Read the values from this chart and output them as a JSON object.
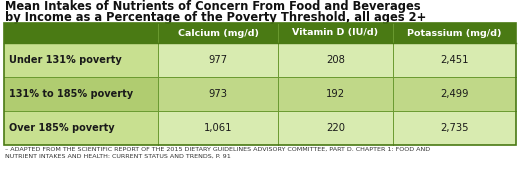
{
  "title_line1": "Mean Intakes of Nutrients of Concern From Food and Beverages",
  "title_line2": "by Income as a Percentage of the Poverty Threshold, all ages 2+",
  "col_headers": [
    "Calcium (mg/d)",
    "Vitamin D (IU/d)",
    "Potassium (mg/d)"
  ],
  "row_labels": [
    "Under 131% poverty",
    "131% to 185% poverty",
    "Over 185% poverty"
  ],
  "data": [
    [
      "977",
      "208",
      "2,451"
    ],
    [
      "973",
      "192",
      "2,499"
    ],
    [
      "1,061",
      "220",
      "2,735"
    ]
  ],
  "footer": "– ADAPTED FROM THE SCIENTIFIC REPORT OF THE 2015 DIETARY GUIDELINES ADVISORY COMMITTEE, PART D. CHAPTER 1: FOOD AND\nNUTRIENT INTAKES AND HEALTH: CURRENT STATUS AND TRENDS, P. 91",
  "header_bg": "#4a7a14",
  "header_text": "#ffffff",
  "row_bg_odd": "#d8ebb0",
  "row_bg_even": "#c0d888",
  "row_label_odd_bg": "#c8e090",
  "row_label_even_bg": "#b0cc70",
  "title_color": "#111111",
  "footer_color": "#333333",
  "border_color": "#4a7a14",
  "divider_color": "#6a9a30",
  "fig_bg": "#ffffff"
}
